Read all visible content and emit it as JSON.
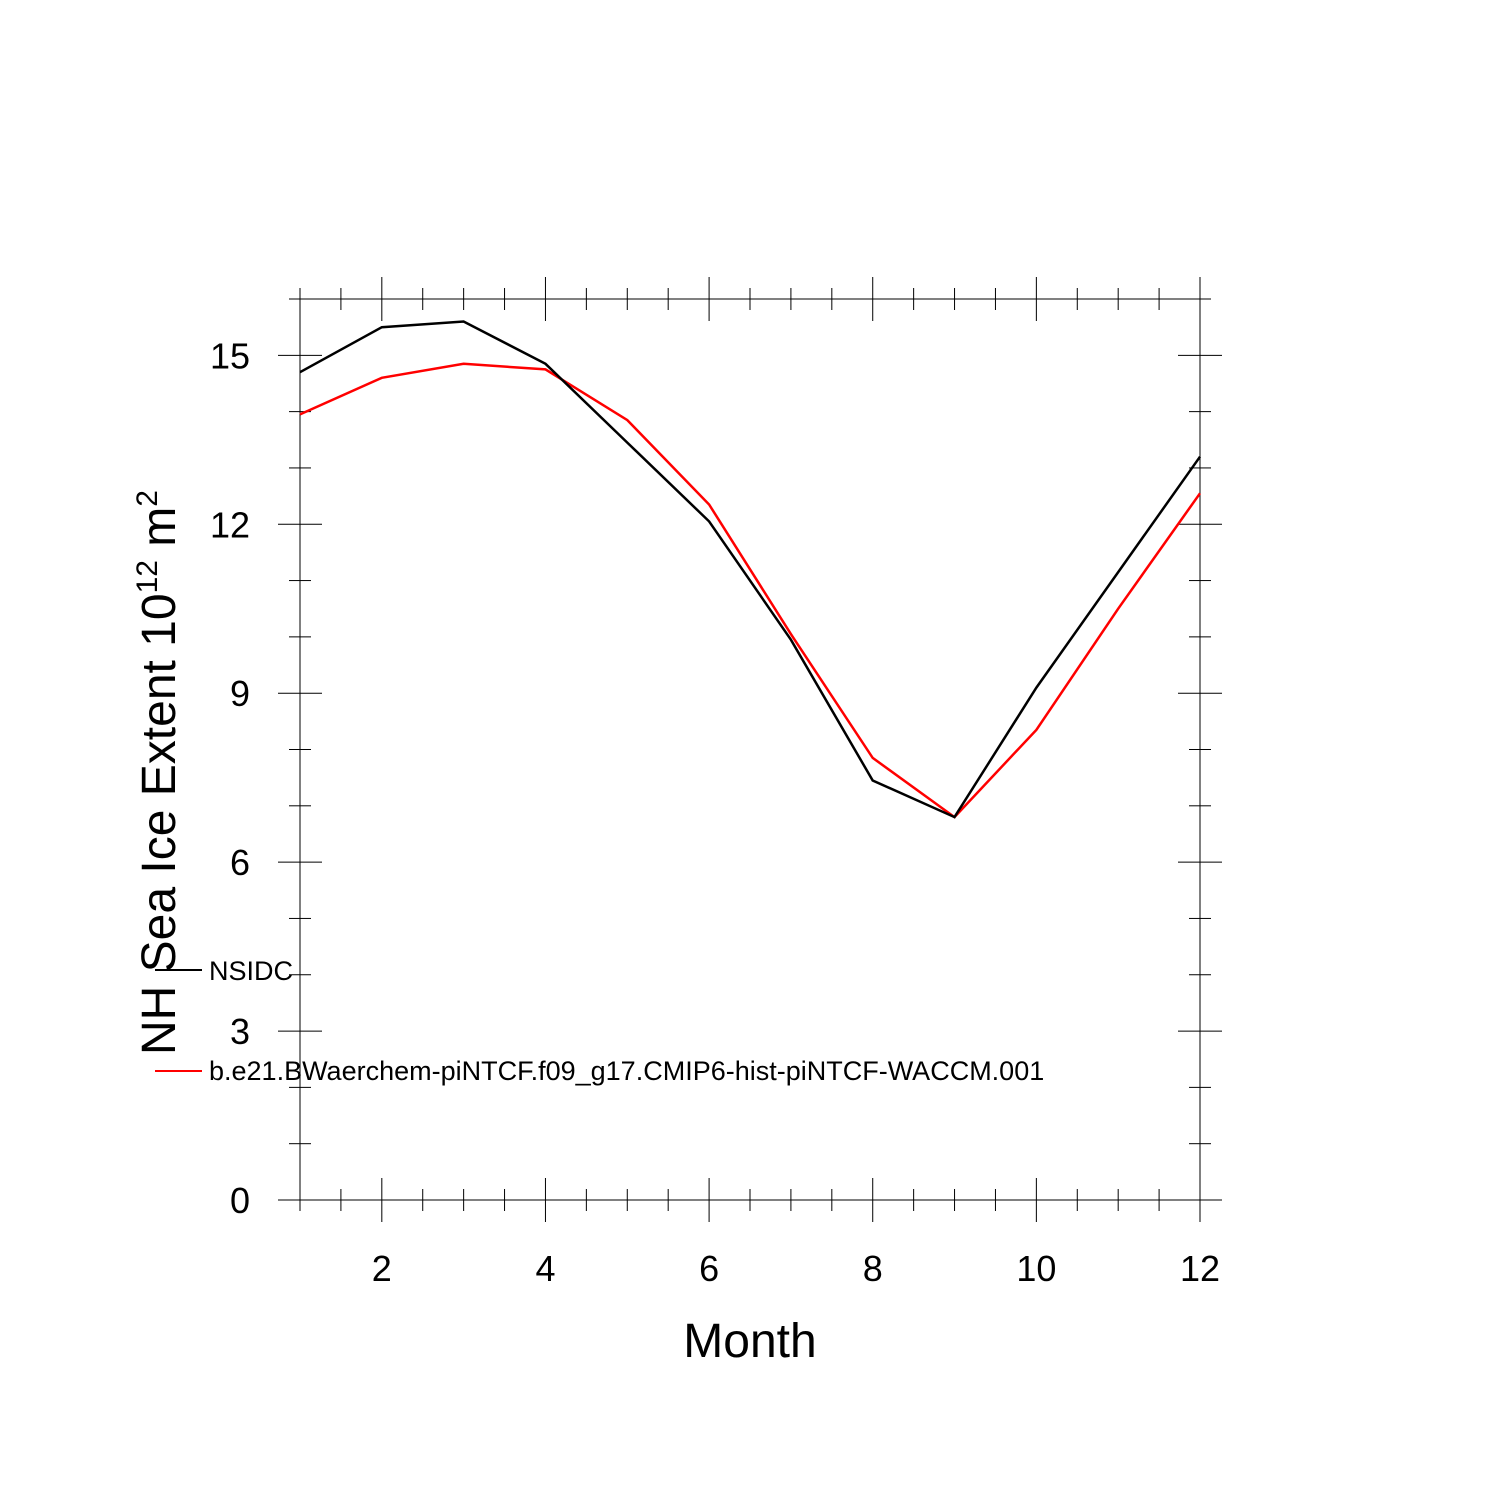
{
  "chart_data": {
    "type": "line",
    "xlabel": "Month",
    "ylabel": {
      "main": "NH Sea Ice Extent 10",
      "exp1": "12",
      "mid": " m",
      "exp2": "2"
    },
    "xlim": [
      1,
      12
    ],
    "ylim": [
      0,
      16
    ],
    "x_ticks": [
      2,
      4,
      6,
      8,
      10,
      12
    ],
    "y_ticks": [
      0,
      3,
      6,
      9,
      12,
      15
    ],
    "x_minor_step": 0.5,
    "y_minor_step": 1,
    "x": [
      1,
      2,
      3,
      4,
      5,
      6,
      7,
      8,
      9,
      10,
      11,
      12
    ],
    "series": [
      {
        "name": "NSIDC",
        "color": "#000000",
        "values": [
          14.7,
          15.5,
          15.6,
          14.85,
          13.45,
          12.05,
          9.95,
          7.45,
          6.8,
          9.1,
          11.15,
          13.2
        ]
      },
      {
        "name": "b.e21.BWaerchem-piNTCF.f09_g17.CMIP6-hist-piNTCF-WACCM.001",
        "color": "#ff0000",
        "values": [
          13.95,
          14.6,
          14.85,
          14.75,
          13.85,
          12.35,
          10.05,
          7.85,
          6.8,
          8.35,
          10.5,
          12.55
        ]
      }
    ],
    "legend_placement": "lower-left inside",
    "grid": false
  }
}
